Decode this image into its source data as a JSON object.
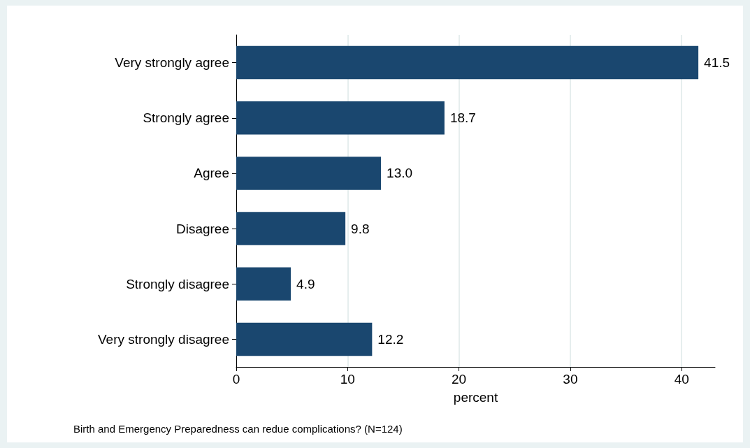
{
  "chart_data": {
    "type": "bar",
    "orientation": "horizontal",
    "categories": [
      "Very strongly agree",
      "Strongly agree",
      "Agree",
      "Disagree",
      "Strongly disagree",
      "Very strongly disagree"
    ],
    "values": [
      41.5,
      18.7,
      13.0,
      9.8,
      4.9,
      12.2
    ],
    "value_labels": [
      "41.5",
      "18.7",
      "13.0",
      "9.8",
      "4.9",
      "12.2"
    ],
    "color": "#1a476f",
    "xlim": [
      0,
      43
    ],
    "xticks": [
      0,
      10,
      20,
      30,
      40
    ],
    "xlabel": "percent",
    "annotations": [
      "Birth and Emergency Preparedness can redue complications? (N=124)"
    ],
    "grid": "x"
  }
}
